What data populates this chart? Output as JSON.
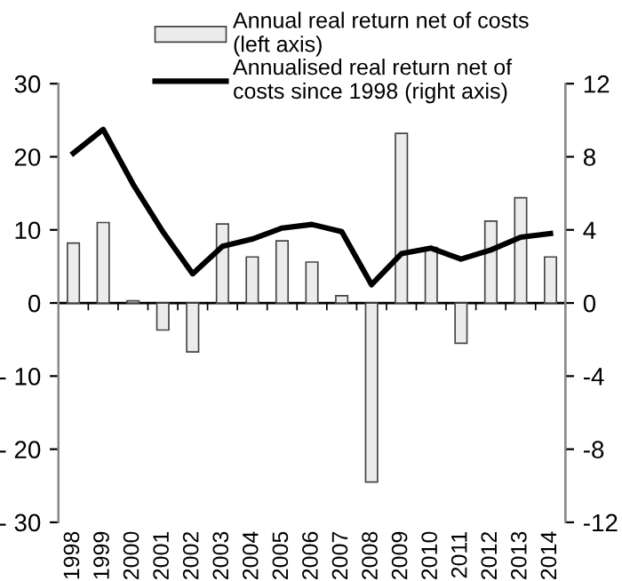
{
  "chart_data": {
    "type": "bar",
    "categories": [
      "1998",
      "1999",
      "2000",
      "2001",
      "2002",
      "2003",
      "2004",
      "2005",
      "2006",
      "2007",
      "2008",
      "2009",
      "2010",
      "2011",
      "2012",
      "2013",
      "2014"
    ],
    "series": [
      {
        "name": "Annual real return net of costs\n(left axis)",
        "color": "#ececec",
        "values": [
          8.2,
          11.0,
          0.3,
          -3.7,
          -6.7,
          10.8,
          6.3,
          8.5,
          5.6,
          1.0,
          -24.5,
          23.2,
          7.6,
          -5.5,
          11.2,
          14.4,
          6.3
        ]
      },
      {
        "name": "Annualised real return net of\ncosts since 1998 (right axis)",
        "type": "line",
        "axis": "y2",
        "color": "#000000",
        "values": [
          8.2,
          9.5,
          6.5,
          3.9,
          1.6,
          3.1,
          3.5,
          4.1,
          4.3,
          3.9,
          1.0,
          2.7,
          3.0,
          2.4,
          2.9,
          3.6,
          3.8
        ]
      }
    ],
    "ylim": [
      -30,
      30
    ],
    "yticks": [
      {
        "value": -30,
        "label": "- 30"
      },
      {
        "value": -20,
        "label": "- 20"
      },
      {
        "value": -10,
        "label": "- 10"
      },
      0,
      10,
      20,
      30
    ],
    "y2lim": [
      -12,
      12
    ],
    "y2ticks": [
      -12,
      -8,
      -4,
      0,
      4,
      8,
      12
    ],
    "ref_lines": [
      {
        "axis": "y",
        "value": 0,
        "color": "#000000"
      }
    ],
    "grid": false,
    "legend": "top"
  }
}
